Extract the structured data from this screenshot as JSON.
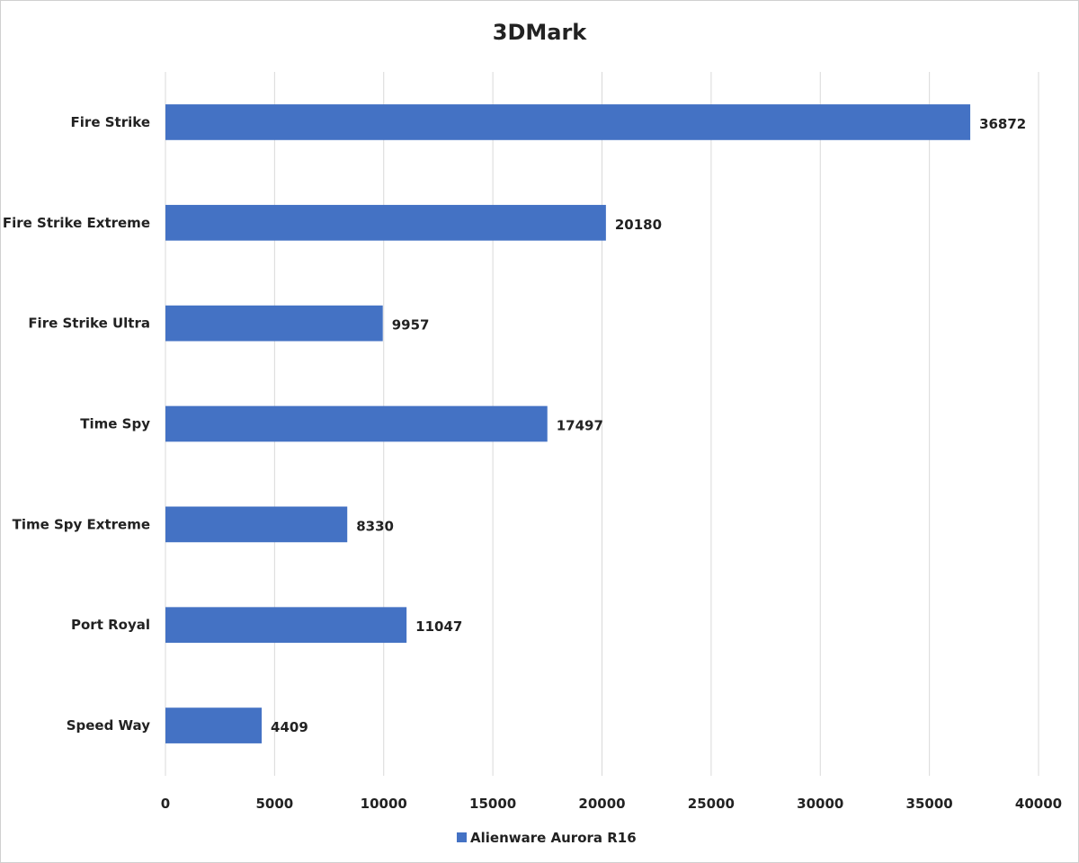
{
  "chart_data": {
    "type": "bar",
    "orientation": "horizontal",
    "title": "3DMark",
    "categories": [
      "Fire Strike",
      "Fire Strike Extreme",
      "Fire Strike Ultra",
      "Time Spy",
      "Time Spy Extreme",
      "Port Royal",
      "Speed Way"
    ],
    "series": [
      {
        "name": "Alienware Aurora R16",
        "values": [
          36872,
          20180,
          9957,
          17497,
          8330,
          11047,
          4409
        ],
        "color": "#4472C4"
      }
    ],
    "xlim": [
      0,
      40000
    ],
    "xticks": [
      0,
      5000,
      10000,
      15000,
      20000,
      25000,
      30000,
      35000,
      40000
    ],
    "xlabel": "",
    "ylabel": "",
    "grid": "vertical",
    "legend": "bottom-center",
    "data_labels": true
  }
}
